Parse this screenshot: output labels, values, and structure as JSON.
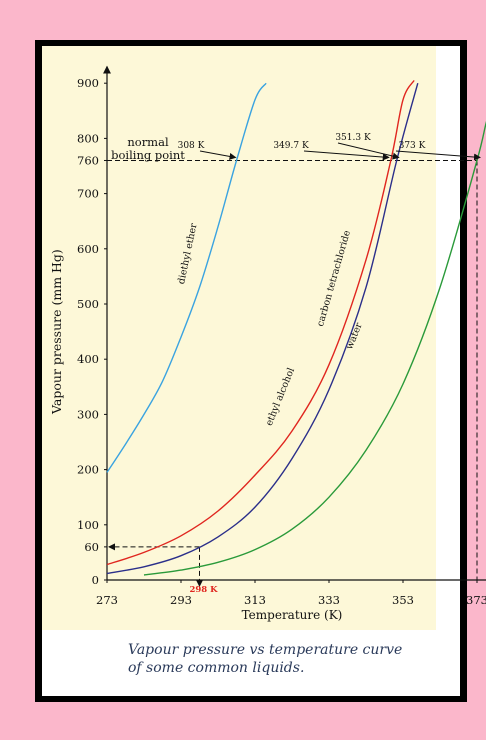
{
  "page": {
    "frame_color": "#000000",
    "background_color": "#fbb7cb",
    "plot_background_color": "#fdf8d8"
  },
  "caption": {
    "line1": "Vapour pressure vs temperature curve",
    "line2": "of some common liquids."
  },
  "chart_data": {
    "type": "line",
    "title": "",
    "xlabel": "Temperature (K)",
    "ylabel": "Vapour pressure (mm Hg)",
    "xlim": [
      268,
      385
    ],
    "ylim": [
      0,
      930
    ],
    "x_ticks": [
      273,
      293,
      313,
      333,
      353,
      373
    ],
    "y_ticks": [
      0,
      60,
      100,
      200,
      300,
      400,
      500,
      600,
      700,
      760,
      800,
      900
    ],
    "grid": false,
    "series": [
      {
        "name": "diethyl ether",
        "color": "#3aa3e0",
        "label_angle": -78,
        "x": [
          273,
          278,
          283,
          288,
          293,
          298,
          303,
          308,
          313,
          316
        ],
        "y": [
          195,
          246,
          300,
          360,
          440,
          530,
          640,
          760,
          870,
          900
        ]
      },
      {
        "name": "carbon tetrachloride",
        "color": "#e0261f",
        "label_angle": -74,
        "x": [
          273,
          283,
          293,
          303,
          313,
          323,
          333,
          343,
          349.7,
          353,
          356
        ],
        "y": [
          28,
          50,
          80,
          125,
          190,
          270,
          390,
          580,
          760,
          870,
          905
        ]
      },
      {
        "name": "ethyl alcohol",
        "color": "#2b2f8a",
        "label_angle": -68,
        "x": [
          273,
          283,
          293,
          303,
          313,
          323,
          333,
          343,
          351.3,
          357
        ],
        "y": [
          12,
          24,
          44,
          78,
          132,
          220,
          345,
          530,
          760,
          900
        ]
      },
      {
        "name": "water",
        "color": "#2a9a3a",
        "label_angle": -68,
        "x": [
          283,
          293,
          303,
          313,
          323,
          333,
          343,
          353,
          363,
          373,
          376,
          380
        ],
        "y": [
          9,
          18,
          32,
          55,
          92,
          150,
          235,
          355,
          530,
          760,
          840,
          900
        ]
      }
    ],
    "annotations": {
      "boiling_point_level": 760,
      "boiling_point_label": "normal\nboiling point",
      "boiling_points": [
        {
          "label": "308 K",
          "x": 308
        },
        {
          "label": "349.7 K",
          "x": 349.7
        },
        {
          "label": "351.3 K",
          "x": 351.3
        },
        {
          "label": "373 K",
          "x": 373
        }
      ],
      "marker": {
        "label": "298 K",
        "x": 298,
        "y": 60,
        "color": "#e0261f"
      }
    }
  }
}
